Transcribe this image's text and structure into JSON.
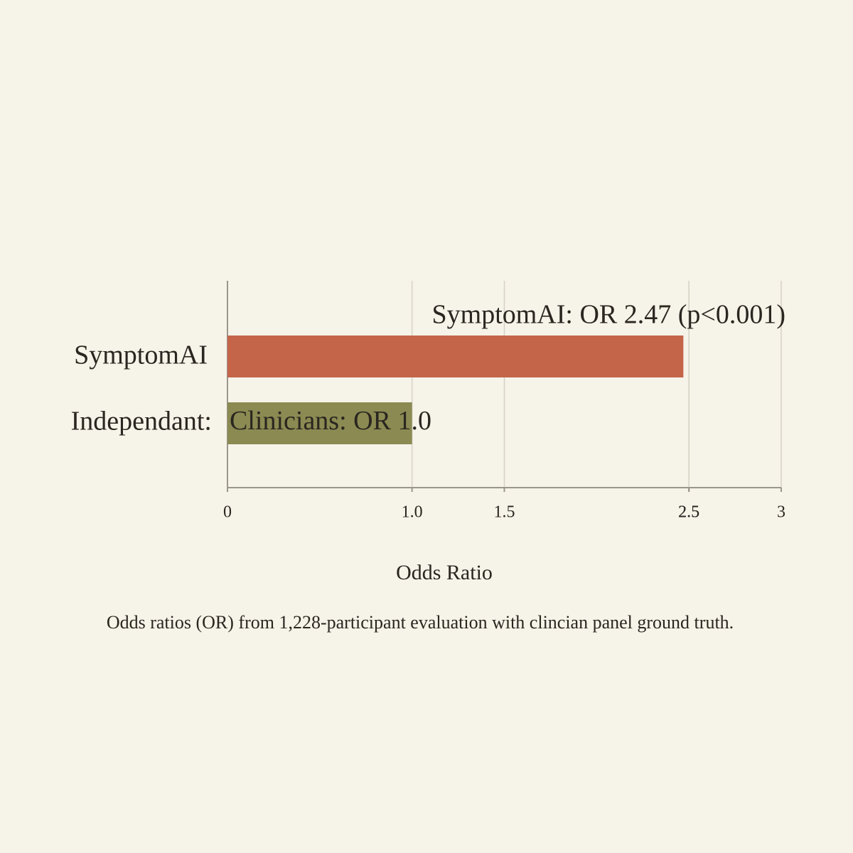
{
  "chart_data": {
    "type": "barh",
    "categories": [
      "SymptomAI",
      "Independant:"
    ],
    "values": [
      2.47,
      1.0
    ],
    "value_labels": [
      "SymptomAI: OR 2.47 (p<0.001)",
      "Clinicians: OR 1.0"
    ],
    "colors": [
      "#c4654a",
      "#8b8a52"
    ],
    "xlabel": "Odds Ratio",
    "caption": "Odds ratios (OR) from 1,228-participant evaluation with clincian panel ground truth.",
    "xlim": [
      0,
      3
    ],
    "xticks": [
      0,
      {
        "value": 1,
        "label": "1.0"
      },
      1.5,
      2.5,
      2.5,
      3
    ],
    "grid": true
  }
}
